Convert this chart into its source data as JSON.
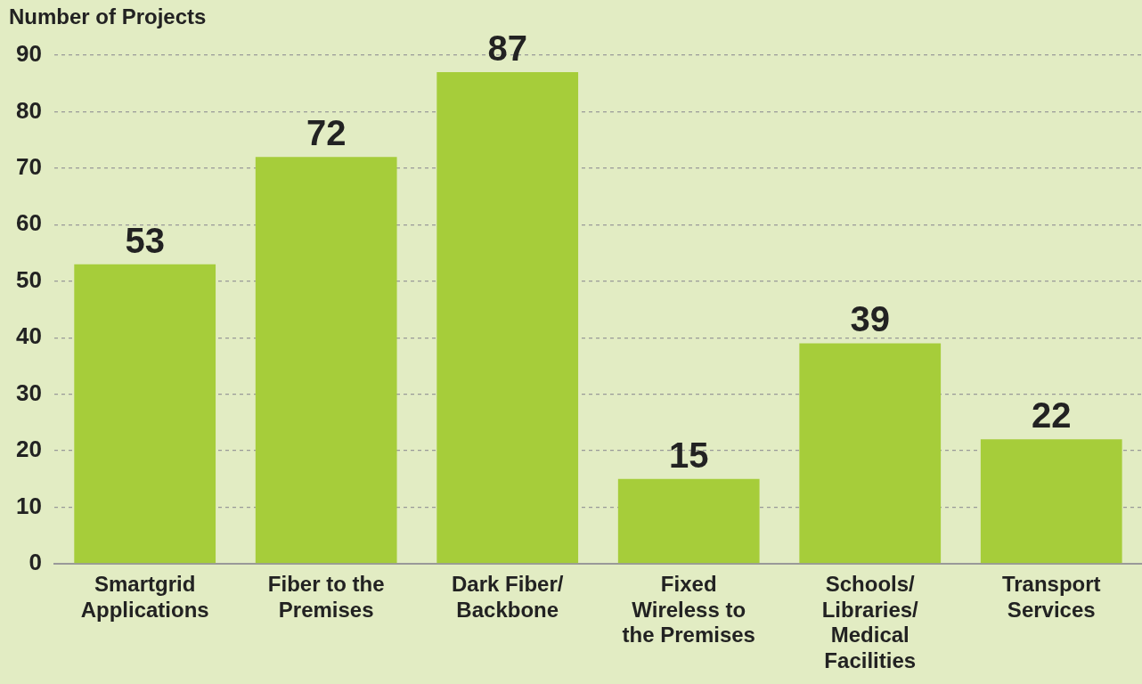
{
  "chart_data": {
    "type": "bar",
    "ylabel": "Number of Projects",
    "categories": [
      "Smartgrid Applications",
      "Fiber to the Premises",
      "Dark Fiber/Backbone",
      "Fixed Wireless to the Premises",
      "Schools/Libraries/Medical Facilities",
      "Transport Services"
    ],
    "values": [
      53,
      72,
      87,
      15,
      39,
      22
    ],
    "color": "#a6cd3a",
    "ylim": [
      0,
      90
    ],
    "yticks": [
      0,
      10,
      20,
      30,
      40,
      50,
      60,
      70,
      80,
      90
    ],
    "grid": "y",
    "data_labels": true
  }
}
